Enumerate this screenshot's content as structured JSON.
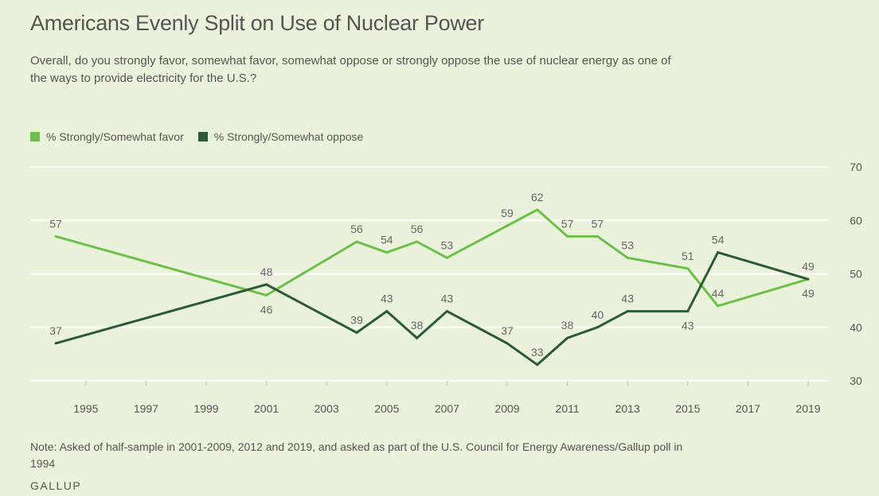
{
  "header": {
    "title": "Americans Evenly Split on Use of Nuclear Power",
    "subtitle": "Overall, do you strongly favor, somewhat favor, somewhat oppose or strongly oppose the use of nuclear energy as one of the ways to provide electricity for the U.S.?"
  },
  "footer": {
    "note": "Note: Asked of half-sample in 2001-2009, 2012 and 2019, and asked as part of the U.S. Council for Energy Awareness/Gallup poll in 1994",
    "brand": "GALLUP"
  },
  "colors": {
    "background": "#eaf2db",
    "favor": "#6cc04a",
    "oppose": "#2c5b34",
    "grid": "#ffffff",
    "text": "#555555"
  },
  "chart_data": {
    "type": "line",
    "title": "",
    "xlabel": "",
    "ylabel": "",
    "x_ticks": [
      "1995",
      "1997",
      "1999",
      "2001",
      "2003",
      "2005",
      "2007",
      "2009",
      "2011",
      "2013",
      "2015",
      "2017",
      "2019"
    ],
    "y_ticks": [
      "30",
      "40",
      "50",
      "60",
      "70"
    ],
    "xlim": [
      1994,
      2019
    ],
    "ylim": [
      30,
      70
    ],
    "grid": true,
    "legend_position": "top-left",
    "series": [
      {
        "name": "% Strongly/Somewhat favor",
        "color": "#6cc04a",
        "x": [
          1994,
          2001,
          2004,
          2005,
          2006,
          2007,
          2009,
          2010,
          2011,
          2012,
          2013,
          2015,
          2016,
          2019
        ],
        "values": [
          57,
          46,
          56,
          54,
          56,
          53,
          59,
          62,
          57,
          57,
          53,
          51,
          44,
          49
        ],
        "label_positions": [
          "above",
          "below",
          "above",
          "above",
          "above",
          "above",
          "above",
          "above",
          "above",
          "above",
          "above",
          "above",
          "above",
          "below"
        ]
      },
      {
        "name": "% Strongly/Somewhat oppose",
        "color": "#2c5b34",
        "x": [
          1994,
          2001,
          2004,
          2005,
          2006,
          2007,
          2009,
          2010,
          2011,
          2012,
          2013,
          2015,
          2016,
          2019
        ],
        "values": [
          37,
          48,
          39,
          43,
          38,
          43,
          37,
          33,
          38,
          40,
          43,
          43,
          54,
          49
        ],
        "label_positions": [
          "above",
          "above",
          "above",
          "above",
          "above",
          "above",
          "above",
          "above",
          "above",
          "above",
          "above",
          "below",
          "above",
          "above"
        ]
      }
    ]
  }
}
